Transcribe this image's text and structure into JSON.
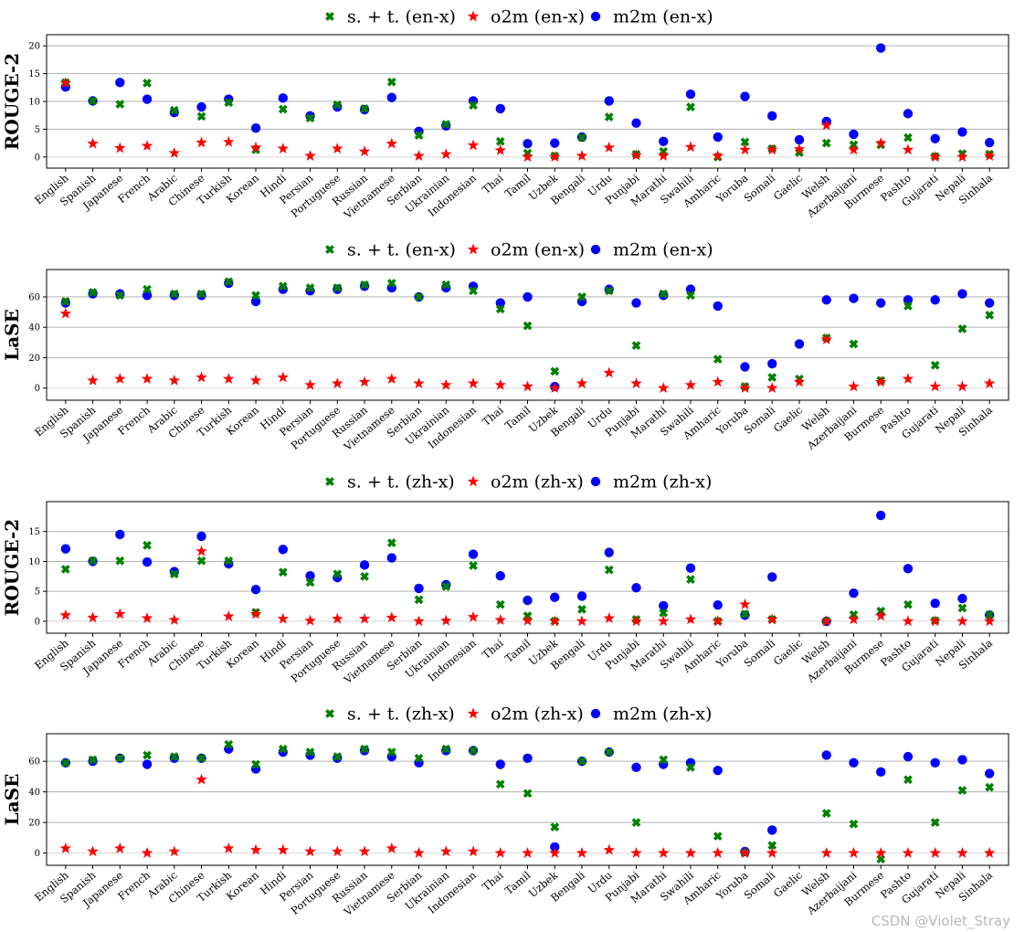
{
  "languages": [
    "English",
    "Spanish",
    "Japanese",
    "French",
    "Arabic",
    "Chinese",
    "Turkish",
    "Korean",
    "Hindi",
    "Persian",
    "Portuguese",
    "Russian",
    "Vietnamese",
    "Serbian",
    "Ukrainian",
    "Indonesian",
    "Thai",
    "Tamil",
    "Uzbek",
    "Bengali",
    "Urdu",
    "Punjabi",
    "Marathi",
    "Swahili",
    "Amharic",
    "Yoruba",
    "Somali",
    "Gaelic",
    "Welsh",
    "Azerbaijani",
    "Burmese",
    "Pashto",
    "Gujarati",
    "Nepali",
    "Sinhala"
  ],
  "colors": {
    "st": "#008000",
    "o2m": "#ff0000",
    "m2m": "#0000ff"
  },
  "marker_names": {
    "st": "x-marker",
    "o2m": "star-marker",
    "m2m": "circle-marker"
  },
  "watermark": "CSDN @Violet_Stray",
  "chart_data": [
    {
      "type": "scatter",
      "title": "",
      "ylabel": "ROUGE-2",
      "ylim": [
        -2,
        22
      ],
      "yticks": [
        0,
        5,
        10,
        15,
        20
      ],
      "grid": true,
      "legend_placement": "top-center",
      "series": [
        {
          "name": "s. + t. (en-x)",
          "key": "st",
          "values": [
            13.4,
            10.1,
            9.5,
            13.3,
            8.4,
            7.3,
            9.8,
            1.3,
            8.6,
            7.0,
            9.4,
            8.7,
            13.5,
            3.9,
            5.9,
            9.3,
            2.8,
            0.7,
            0.2,
            3.5,
            7.2,
            0.5,
            1.0,
            9.0,
            0.0,
            2.7,
            1.5,
            0.8,
            2.5,
            2.2,
            2.2,
            3.5,
            0.1,
            0.6,
            0.5
          ]
        },
        {
          "name": "o2m (en-x)",
          "key": "o2m",
          "values": [
            13.3,
            2.4,
            1.6,
            2.0,
            0.7,
            2.6,
            2.7,
            1.7,
            1.5,
            0.2,
            1.5,
            1.0,
            2.4,
            0.2,
            0.5,
            2.1,
            1.2,
            0.0,
            0.0,
            0.2,
            1.7,
            0.3,
            0.2,
            1.8,
            0.2,
            1.3,
            1.3,
            1.4,
            5.7,
            1.3,
            2.5,
            1.3,
            0.0,
            0.0,
            0.2
          ]
        },
        {
          "name": "m2m (en-x)",
          "key": "m2m",
          "values": [
            12.6,
            10.1,
            13.4,
            10.4,
            8.0,
            9.0,
            10.4,
            5.2,
            10.6,
            7.4,
            9.0,
            8.5,
            10.7,
            4.6,
            5.6,
            10.1,
            8.7,
            2.4,
            2.5,
            3.6,
            10.1,
            6.1,
            2.8,
            11.3,
            3.6,
            10.9,
            7.4,
            3.1,
            6.4,
            4.1,
            19.6,
            7.8,
            3.3,
            4.5,
            2.6
          ]
        }
      ]
    },
    {
      "type": "scatter",
      "title": "",
      "ylabel": "LaSE",
      "ylim": [
        -8,
        78
      ],
      "yticks": [
        0,
        20,
        40,
        60
      ],
      "grid": true,
      "legend_placement": "top-center",
      "series": [
        {
          "name": "s. + t. (en-x)",
          "key": "st",
          "values": [
            57,
            63,
            61,
            65,
            62,
            62,
            70,
            61,
            67,
            66,
            66,
            68,
            69,
            60,
            68,
            64,
            52,
            41,
            11,
            60,
            64,
            28,
            62,
            61,
            19,
            1,
            7,
            6,
            33,
            29,
            5,
            54,
            15,
            39,
            48
          ]
        },
        {
          "name": "o2m (en-x)",
          "key": "o2m",
          "values": [
            49,
            5,
            6,
            6,
            5,
            7,
            6,
            5,
            7,
            2,
            3,
            4,
            6,
            3,
            2,
            3,
            2,
            1,
            0,
            3,
            10,
            3,
            0,
            2,
            4,
            0,
            0,
            4,
            32,
            1,
            4,
            6,
            1,
            1,
            3
          ]
        },
        {
          "name": "m2m (en-x)",
          "key": "m2m",
          "values": [
            56,
            62,
            62,
            61,
            61,
            61,
            69,
            57,
            65,
            64,
            65,
            67,
            66,
            60,
            66,
            67,
            56,
            60,
            1,
            57,
            65,
            56,
            61,
            65,
            54,
            14,
            16,
            29,
            58,
            59,
            56,
            58,
            58,
            62,
            56
          ]
        }
      ]
    },
    {
      "type": "scatter",
      "title": "",
      "ylabel": "ROUGE-2",
      "ylim": [
        -2,
        20
      ],
      "yticks": [
        0,
        5,
        10,
        15
      ],
      "grid": true,
      "legend_placement": "top-center",
      "series": [
        {
          "name": "s. + t. (zh-x)",
          "key": "st",
          "values": [
            8.7,
            10.1,
            10.1,
            12.7,
            7.9,
            10.1,
            10.1,
            1.5,
            8.2,
            6.5,
            7.9,
            7.5,
            13.1,
            3.6,
            5.8,
            9.3,
            2.8,
            0.9,
            0.0,
            2.0,
            8.6,
            0.3,
            1.4,
            7.0,
            0.0,
            1.2,
            0.3,
            null,
            0.0,
            1.1,
            1.7,
            2.8,
            0.1,
            2.2,
            1.1
          ]
        },
        {
          "name": "o2m (zh-x)",
          "key": "o2m",
          "values": [
            1.0,
            0.6,
            1.2,
            0.5,
            0.2,
            11.7,
            0.8,
            1.2,
            0.4,
            0.1,
            0.4,
            0.4,
            0.6,
            0.0,
            0.1,
            0.7,
            0.2,
            0.1,
            0.0,
            0.0,
            0.5,
            0.0,
            0.0,
            0.3,
            0.0,
            2.8,
            0.3,
            null,
            0.0,
            0.3,
            0.9,
            0.0,
            0.0,
            0.0,
            0.0
          ]
        },
        {
          "name": "m2m (zh-x)",
          "key": "m2m",
          "values": [
            12.1,
            10.0,
            14.5,
            9.9,
            8.3,
            14.2,
            9.6,
            5.3,
            12.0,
            7.6,
            7.3,
            9.4,
            10.6,
            5.5,
            6.1,
            11.2,
            7.6,
            3.5,
            4.0,
            4.2,
            11.5,
            5.6,
            2.6,
            8.9,
            2.7,
            1.0,
            7.4,
            null,
            0.0,
            4.7,
            17.7,
            8.8,
            3.0,
            3.8,
            1.0
          ]
        }
      ]
    },
    {
      "type": "scatter",
      "title": "",
      "ylabel": "LaSE",
      "ylim": [
        -8,
        78
      ],
      "yticks": [
        0,
        20,
        40,
        60
      ],
      "grid": true,
      "legend_placement": "top-center",
      "series": [
        {
          "name": "s. + t. (zh-x)",
          "key": "st",
          "values": [
            59,
            61,
            62,
            64,
            63,
            62,
            71,
            58,
            68,
            66,
            63,
            68,
            66,
            62,
            68,
            67,
            45,
            39,
            17,
            60,
            66,
            20,
            61,
            56,
            11,
            0,
            5,
            null,
            26,
            19,
            -4,
            48,
            20,
            41,
            43
          ]
        },
        {
          "name": "o2m (zh-x)",
          "key": "o2m",
          "values": [
            3,
            1,
            3,
            0,
            1,
            48,
            3,
            2,
            2,
            1,
            1,
            1,
            3,
            0,
            1,
            1,
            0,
            0,
            0,
            0,
            2,
            0,
            0,
            0,
            0,
            0,
            0,
            null,
            0,
            0,
            0,
            0,
            0,
            0,
            0
          ]
        },
        {
          "name": "m2m (zh-x)",
          "key": "m2m",
          "values": [
            59,
            60,
            62,
            58,
            62,
            62,
            68,
            55,
            66,
            64,
            62,
            67,
            63,
            59,
            67,
            67,
            58,
            62,
            4,
            60,
            66,
            56,
            58,
            59,
            54,
            1,
            15,
            null,
            64,
            59,
            53,
            63,
            59,
            61,
            52
          ]
        }
      ]
    }
  ]
}
